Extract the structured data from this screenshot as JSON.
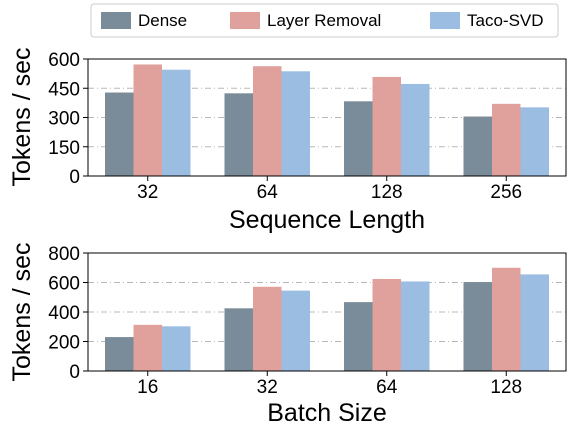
{
  "chart_data": [
    {
      "type": "bar",
      "categories": [
        "32",
        "64",
        "128",
        "256"
      ],
      "series": [
        {
          "name": "Dense",
          "values": [
            428,
            424,
            383,
            305
          ]
        },
        {
          "name": "Layer Removal",
          "values": [
            572,
            563,
            508,
            370
          ]
        },
        {
          "name": "Taco-SVD",
          "values": [
            545,
            537,
            472,
            352
          ]
        }
      ],
      "xlabel": "Sequence Length",
      "ylabel": "Tokens / sec",
      "ylim": [
        0,
        600
      ],
      "yticks": [
        0,
        150,
        300,
        450,
        600
      ],
      "grid": "y-dashdot",
      "legend": "top-center"
    },
    {
      "type": "bar",
      "categories": [
        "16",
        "32",
        "64",
        "128"
      ],
      "series": [
        {
          "name": "Dense",
          "values": [
            230,
            425,
            467,
            603
          ]
        },
        {
          "name": "Layer Removal",
          "values": [
            313,
            571,
            624,
            700
          ]
        },
        {
          "name": "Taco-SVD",
          "values": [
            303,
            545,
            607,
            655
          ]
        }
      ],
      "xlabel": "Batch Size",
      "ylabel": "Tokens / sec",
      "ylim": [
        0,
        800
      ],
      "yticks": [
        0,
        200,
        400,
        600,
        800
      ],
      "grid": "y-dashdot",
      "legend": "top-center"
    }
  ],
  "legend": [
    {
      "name": "Dense",
      "color": "#7a8b99"
    },
    {
      "name": "Layer Removal",
      "color": "#e0a09c"
    },
    {
      "name": "Taco-SVD",
      "color": "#9bbde2"
    }
  ]
}
